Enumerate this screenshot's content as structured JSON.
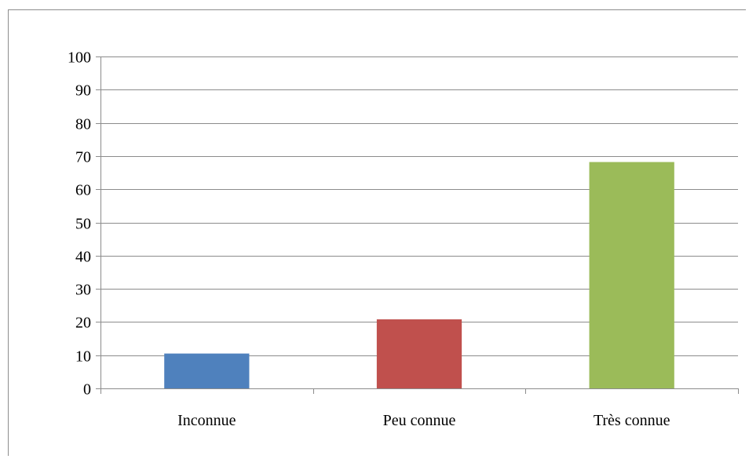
{
  "chart_data": {
    "type": "bar",
    "categories": [
      "Inconnue",
      "Peu connue",
      "Très connue"
    ],
    "values": [
      10.5,
      20.8,
      68.2
    ],
    "colors": [
      "#4f81bd",
      "#c0504d",
      "#9bbb59"
    ],
    "title": "",
    "xlabel": "",
    "ylabel": "",
    "ylim": [
      0,
      100
    ],
    "yticks": [
      0,
      10,
      20,
      30,
      40,
      50,
      60,
      70,
      80,
      90,
      100
    ],
    "grid": true,
    "legend": "none"
  }
}
